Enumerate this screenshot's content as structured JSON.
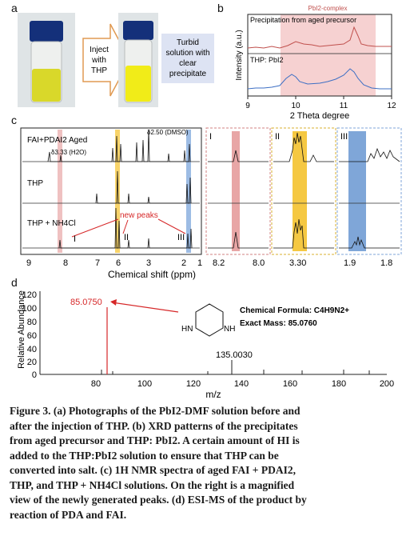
{
  "panel_a": {
    "label": "a",
    "arrow_text": [
      "Inject",
      "with",
      "THP"
    ],
    "result_text": [
      "Turbid",
      "solution with",
      "clear",
      "precipitate"
    ]
  },
  "panel_b": {
    "label": "b",
    "region_label": "PbI2-complex",
    "top_trace_label": "Precipitation from aged precursor",
    "bottom_trace_label": "THP: PbI2",
    "ylabel": "Intensity (a.u.)",
    "xlabel": "2 Theta degree",
    "xticks": [
      "9",
      "10",
      "11",
      "12"
    ],
    "top_color": "#c0504d",
    "bottom_color": "#3d6fc4",
    "region_color": "#f4c7c7"
  },
  "panel_c": {
    "label": "c",
    "trace_labels": [
      "FAI+PDAI2 Aged",
      "THP",
      "THP + NH4Cl"
    ],
    "ann_h2o": "δ3.33 (H2O)",
    "ann_dmso": "δ2.50 (DMSO)",
    "new_peaks_label": "new peaks",
    "roman": [
      "I",
      "II",
      "III"
    ],
    "xticks": [
      "9",
      "8",
      "7",
      "6",
      "3",
      "2",
      "1"
    ],
    "xlabel": "Chemical shift (ppm)",
    "zoom_ticks_I": [
      "8.2",
      "8.0"
    ],
    "zoom_ticks_II": [
      "3.30"
    ],
    "zoom_ticks_III": [
      "1.9",
      "1.8"
    ],
    "colors": {
      "I": "#e8a6a6",
      "II": "#f5c842",
      "III": "#7fa6d8"
    }
  },
  "panel_d": {
    "label": "d",
    "ylabel": "Relative Abundance",
    "xlabel": "m/z",
    "yticks": [
      "0",
      "20",
      "40",
      "60",
      "80",
      "100",
      "120"
    ],
    "xticks": [
      "80",
      "100",
      "120",
      "140",
      "160",
      "180",
      "200"
    ],
    "peak_main_label": "85.0750",
    "peak_second_label": "135.0030",
    "formula_label": "Chemical Formula: C4H9N2+",
    "mass_label": "Exact Mass: 85.0760",
    "peak_color": "#d62728"
  },
  "caption": {
    "lines": [
      "Figure 3. (a) Photographs of the PbI2-DMF solution before and",
      "after the injection of THP. (b) XRD patterns of the precipitates",
      "from aged precursor and THP: PbI2. A certain amount of HI is",
      "added to the THP:PbI2 solution to ensure that THP can be",
      "converted into salt. (c) 1H NMR spectra of aged FAI + PDAI2,",
      "THP, and THP + NH4Cl solutions. On the right is a magnified",
      "view of the newly generated peaks. (d) ESI-MS of the product by",
      "reaction of PDA and FAI."
    ]
  }
}
